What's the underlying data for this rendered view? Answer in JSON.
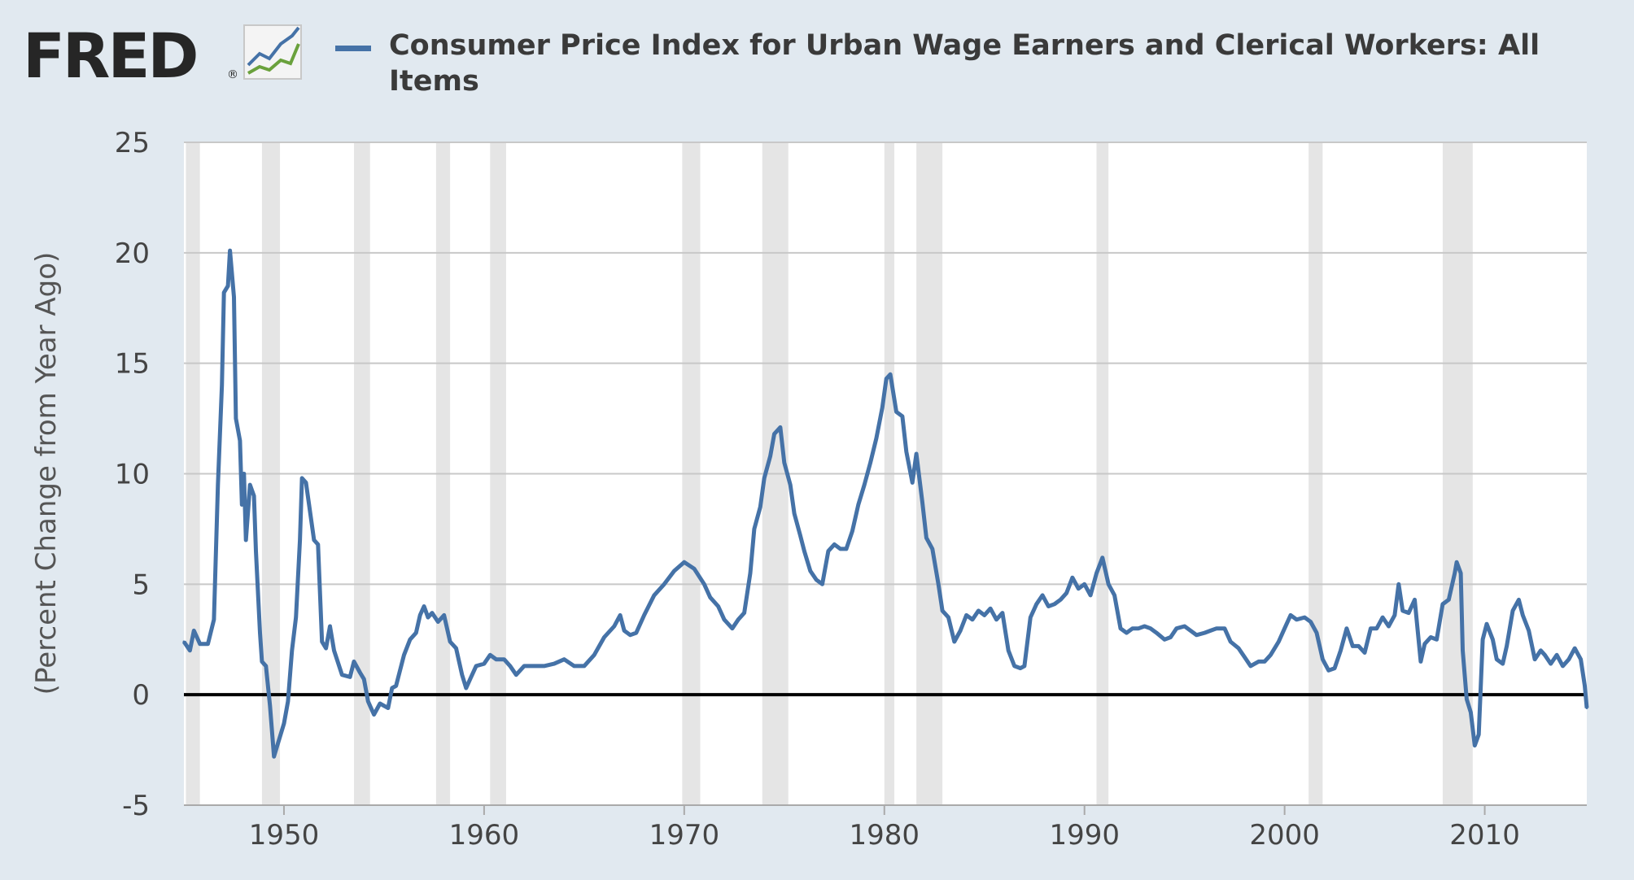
{
  "logo": {
    "text": "FRED",
    "reg_mark": "®",
    "icon": "line-chart-icon"
  },
  "legend": {
    "label": "Consumer Price Index for Urban Wage Earners and Clerical Workers: All Items",
    "color": "#4572a7"
  },
  "colors": {
    "background": "#e1e9f0",
    "plot_background": "#ffffff",
    "recession_band": "#e5e5e5",
    "grid": "#c8c8c8",
    "series": "#4572a7",
    "zero_line": "#000000"
  },
  "chart_data": {
    "type": "line",
    "title": "",
    "xlabel": "",
    "ylabel": "(Percent Change from Year Ago)",
    "xlim": [
      1945.0,
      2015.1
    ],
    "ylim": [
      -5,
      25
    ],
    "y_ticks": [
      25,
      20,
      15,
      10,
      5,
      0,
      -5
    ],
    "x_ticks": [
      1950,
      1960,
      1970,
      1980,
      1990,
      2000,
      2010
    ],
    "grid": true,
    "zero_line": 0,
    "legend_position": "top",
    "recessions": [
      [
        1945.1,
        1945.8
      ],
      [
        1948.9,
        1949.8
      ],
      [
        1953.5,
        1954.3
      ],
      [
        1957.6,
        1958.3
      ],
      [
        1960.3,
        1961.1
      ],
      [
        1969.9,
        1970.8
      ],
      [
        1973.9,
        1975.2
      ],
      [
        1980.0,
        1980.5
      ],
      [
        1981.6,
        1982.9
      ],
      [
        1990.6,
        1991.2
      ],
      [
        2001.2,
        2001.9
      ],
      [
        2007.9,
        2009.4
      ]
    ],
    "series": [
      {
        "name": "Consumer Price Index for Urban Wage Earners and Clerical Workers: All Items",
        "points": [
          [
            1945.0,
            2.4
          ],
          [
            1945.3,
            2.0
          ],
          [
            1945.5,
            2.9
          ],
          [
            1945.8,
            2.3
          ],
          [
            1946.2,
            2.3
          ],
          [
            1946.5,
            3.4
          ],
          [
            1946.7,
            9.5
          ],
          [
            1946.9,
            14.0
          ],
          [
            1947.0,
            18.2
          ],
          [
            1947.2,
            18.5
          ],
          [
            1947.3,
            20.1
          ],
          [
            1947.5,
            18.0
          ],
          [
            1947.6,
            12.5
          ],
          [
            1947.8,
            11.5
          ],
          [
            1947.9,
            8.6
          ],
          [
            1948.0,
            10.0
          ],
          [
            1948.1,
            7.0
          ],
          [
            1948.3,
            9.5
          ],
          [
            1948.5,
            9.0
          ],
          [
            1948.6,
            6.5
          ],
          [
            1948.8,
            2.8
          ],
          [
            1948.9,
            1.5
          ],
          [
            1949.1,
            1.3
          ],
          [
            1949.3,
            -0.5
          ],
          [
            1949.5,
            -2.8
          ],
          [
            1949.7,
            -2.2
          ],
          [
            1950.0,
            -1.3
          ],
          [
            1950.2,
            -0.3
          ],
          [
            1950.4,
            2.0
          ],
          [
            1950.6,
            3.5
          ],
          [
            1950.8,
            7.0
          ],
          [
            1950.9,
            9.8
          ],
          [
            1951.1,
            9.6
          ],
          [
            1951.5,
            7.0
          ],
          [
            1951.7,
            6.8
          ],
          [
            1951.9,
            2.4
          ],
          [
            1952.1,
            2.1
          ],
          [
            1952.3,
            3.1
          ],
          [
            1952.5,
            2.0
          ],
          [
            1952.9,
            0.9
          ],
          [
            1953.3,
            0.8
          ],
          [
            1953.5,
            1.5
          ],
          [
            1953.8,
            1.0
          ],
          [
            1954.0,
            0.7
          ],
          [
            1954.2,
            -0.3
          ],
          [
            1954.3,
            -0.5
          ],
          [
            1954.5,
            -0.9
          ],
          [
            1954.8,
            -0.4
          ],
          [
            1955.0,
            -0.5
          ],
          [
            1955.2,
            -0.6
          ],
          [
            1955.4,
            0.3
          ],
          [
            1955.6,
            0.4
          ],
          [
            1956.0,
            1.8
          ],
          [
            1956.3,
            2.5
          ],
          [
            1956.6,
            2.8
          ],
          [
            1956.8,
            3.6
          ],
          [
            1957.0,
            4.0
          ],
          [
            1957.2,
            3.5
          ],
          [
            1957.4,
            3.7
          ],
          [
            1957.7,
            3.3
          ],
          [
            1958.0,
            3.6
          ],
          [
            1958.3,
            2.4
          ],
          [
            1958.6,
            2.1
          ],
          [
            1958.9,
            0.9
          ],
          [
            1959.1,
            0.3
          ],
          [
            1959.3,
            0.7
          ],
          [
            1959.6,
            1.3
          ],
          [
            1960.0,
            1.4
          ],
          [
            1960.3,
            1.8
          ],
          [
            1960.6,
            1.6
          ],
          [
            1961.0,
            1.6
          ],
          [
            1961.3,
            1.3
          ],
          [
            1961.6,
            0.9
          ],
          [
            1962.0,
            1.3
          ],
          [
            1962.5,
            1.3
          ],
          [
            1963.0,
            1.3
          ],
          [
            1963.5,
            1.4
          ],
          [
            1964.0,
            1.6
          ],
          [
            1964.5,
            1.3
          ],
          [
            1965.0,
            1.3
          ],
          [
            1965.5,
            1.8
          ],
          [
            1966.0,
            2.6
          ],
          [
            1966.5,
            3.1
          ],
          [
            1966.8,
            3.6
          ],
          [
            1967.0,
            2.9
          ],
          [
            1967.3,
            2.7
          ],
          [
            1967.6,
            2.8
          ],
          [
            1968.0,
            3.6
          ],
          [
            1968.5,
            4.5
          ],
          [
            1969.0,
            5.0
          ],
          [
            1969.5,
            5.6
          ],
          [
            1970.0,
            6.0
          ],
          [
            1970.5,
            5.7
          ],
          [
            1971.0,
            5.0
          ],
          [
            1971.3,
            4.4
          ],
          [
            1971.7,
            4.0
          ],
          [
            1972.0,
            3.4
          ],
          [
            1972.4,
            3.0
          ],
          [
            1972.7,
            3.4
          ],
          [
            1973.0,
            3.7
          ],
          [
            1973.3,
            5.5
          ],
          [
            1973.5,
            7.5
          ],
          [
            1973.8,
            8.5
          ],
          [
            1974.0,
            9.8
          ],
          [
            1974.3,
            10.8
          ],
          [
            1974.5,
            11.8
          ],
          [
            1974.8,
            12.1
          ],
          [
            1975.0,
            10.5
          ],
          [
            1975.3,
            9.5
          ],
          [
            1975.5,
            8.2
          ],
          [
            1975.8,
            7.2
          ],
          [
            1976.0,
            6.5
          ],
          [
            1976.3,
            5.6
          ],
          [
            1976.6,
            5.2
          ],
          [
            1976.9,
            5.0
          ],
          [
            1977.2,
            6.5
          ],
          [
            1977.5,
            6.8
          ],
          [
            1977.8,
            6.6
          ],
          [
            1978.1,
            6.6
          ],
          [
            1978.4,
            7.4
          ],
          [
            1978.7,
            8.6
          ],
          [
            1979.0,
            9.5
          ],
          [
            1979.3,
            10.5
          ],
          [
            1979.6,
            11.6
          ],
          [
            1979.9,
            13.0
          ],
          [
            1980.1,
            14.3
          ],
          [
            1980.3,
            14.5
          ],
          [
            1980.6,
            12.8
          ],
          [
            1980.9,
            12.6
          ],
          [
            1981.1,
            11.0
          ],
          [
            1981.4,
            9.6
          ],
          [
            1981.6,
            10.9
          ],
          [
            1981.9,
            8.7
          ],
          [
            1982.1,
            7.1
          ],
          [
            1982.4,
            6.6
          ],
          [
            1982.7,
            5.0
          ],
          [
            1982.9,
            3.8
          ],
          [
            1983.2,
            3.5
          ],
          [
            1983.5,
            2.4
          ],
          [
            1983.8,
            2.9
          ],
          [
            1984.1,
            3.6
          ],
          [
            1984.4,
            3.4
          ],
          [
            1984.7,
            3.8
          ],
          [
            1985.0,
            3.6
          ],
          [
            1985.3,
            3.9
          ],
          [
            1985.6,
            3.4
          ],
          [
            1985.9,
            3.7
          ],
          [
            1986.2,
            2.0
          ],
          [
            1986.5,
            1.3
          ],
          [
            1986.8,
            1.2
          ],
          [
            1987.0,
            1.3
          ],
          [
            1987.3,
            3.5
          ],
          [
            1987.6,
            4.1
          ],
          [
            1987.9,
            4.5
          ],
          [
            1988.2,
            4.0
          ],
          [
            1988.5,
            4.1
          ],
          [
            1988.8,
            4.3
          ],
          [
            1989.1,
            4.6
          ],
          [
            1989.4,
            5.3
          ],
          [
            1989.7,
            4.8
          ],
          [
            1990.0,
            5.0
          ],
          [
            1990.3,
            4.5
          ],
          [
            1990.6,
            5.5
          ],
          [
            1990.9,
            6.2
          ],
          [
            1991.2,
            5.0
          ],
          [
            1991.5,
            4.5
          ],
          [
            1991.8,
            3.0
          ],
          [
            1992.1,
            2.8
          ],
          [
            1992.4,
            3.0
          ],
          [
            1992.7,
            3.0
          ],
          [
            1993.0,
            3.1
          ],
          [
            1993.3,
            3.0
          ],
          [
            1993.6,
            2.8
          ],
          [
            1994.0,
            2.5
          ],
          [
            1994.3,
            2.6
          ],
          [
            1994.6,
            3.0
          ],
          [
            1995.0,
            3.1
          ],
          [
            1995.3,
            2.9
          ],
          [
            1995.6,
            2.7
          ],
          [
            1996.0,
            2.8
          ],
          [
            1996.3,
            2.9
          ],
          [
            1996.6,
            3.0
          ],
          [
            1997.0,
            3.0
          ],
          [
            1997.3,
            2.4
          ],
          [
            1997.7,
            2.1
          ],
          [
            1998.0,
            1.7
          ],
          [
            1998.3,
            1.3
          ],
          [
            1998.7,
            1.5
          ],
          [
            1999.0,
            1.5
          ],
          [
            1999.3,
            1.8
          ],
          [
            1999.7,
            2.4
          ],
          [
            2000.0,
            3.0
          ],
          [
            2000.3,
            3.6
          ],
          [
            2000.6,
            3.4
          ],
          [
            2001.0,
            3.5
          ],
          [
            2001.3,
            3.3
          ],
          [
            2001.6,
            2.8
          ],
          [
            2001.9,
            1.6
          ],
          [
            2002.2,
            1.1
          ],
          [
            2002.5,
            1.2
          ],
          [
            2002.8,
            2.0
          ],
          [
            2003.1,
            3.0
          ],
          [
            2003.4,
            2.2
          ],
          [
            2003.7,
            2.2
          ],
          [
            2004.0,
            1.9
          ],
          [
            2004.3,
            3.0
          ],
          [
            2004.6,
            3.0
          ],
          [
            2004.9,
            3.5
          ],
          [
            2005.2,
            3.1
          ],
          [
            2005.5,
            3.6
          ],
          [
            2005.7,
            5.0
          ],
          [
            2005.9,
            3.8
          ],
          [
            2006.2,
            3.7
          ],
          [
            2006.5,
            4.3
          ],
          [
            2006.8,
            1.5
          ],
          [
            2007.0,
            2.3
          ],
          [
            2007.3,
            2.6
          ],
          [
            2007.6,
            2.5
          ],
          [
            2007.9,
            4.1
          ],
          [
            2008.2,
            4.3
          ],
          [
            2008.5,
            5.5
          ],
          [
            2008.6,
            6.0
          ],
          [
            2008.8,
            5.5
          ],
          [
            2008.9,
            2.0
          ],
          [
            2009.1,
            -0.2
          ],
          [
            2009.3,
            -0.8
          ],
          [
            2009.5,
            -2.3
          ],
          [
            2009.7,
            -1.8
          ],
          [
            2009.9,
            2.5
          ],
          [
            2010.1,
            3.2
          ],
          [
            2010.4,
            2.5
          ],
          [
            2010.6,
            1.6
          ],
          [
            2010.9,
            1.4
          ],
          [
            2011.1,
            2.2
          ],
          [
            2011.4,
            3.8
          ],
          [
            2011.7,
            4.3
          ],
          [
            2011.9,
            3.6
          ],
          [
            2012.2,
            2.9
          ],
          [
            2012.5,
            1.6
          ],
          [
            2012.8,
            2.0
          ],
          [
            2013.0,
            1.8
          ],
          [
            2013.3,
            1.4
          ],
          [
            2013.6,
            1.8
          ],
          [
            2013.9,
            1.3
          ],
          [
            2014.2,
            1.6
          ],
          [
            2014.5,
            2.1
          ],
          [
            2014.8,
            1.6
          ],
          [
            2015.0,
            0.4
          ],
          [
            2015.1,
            -0.6
          ]
        ]
      }
    ]
  }
}
